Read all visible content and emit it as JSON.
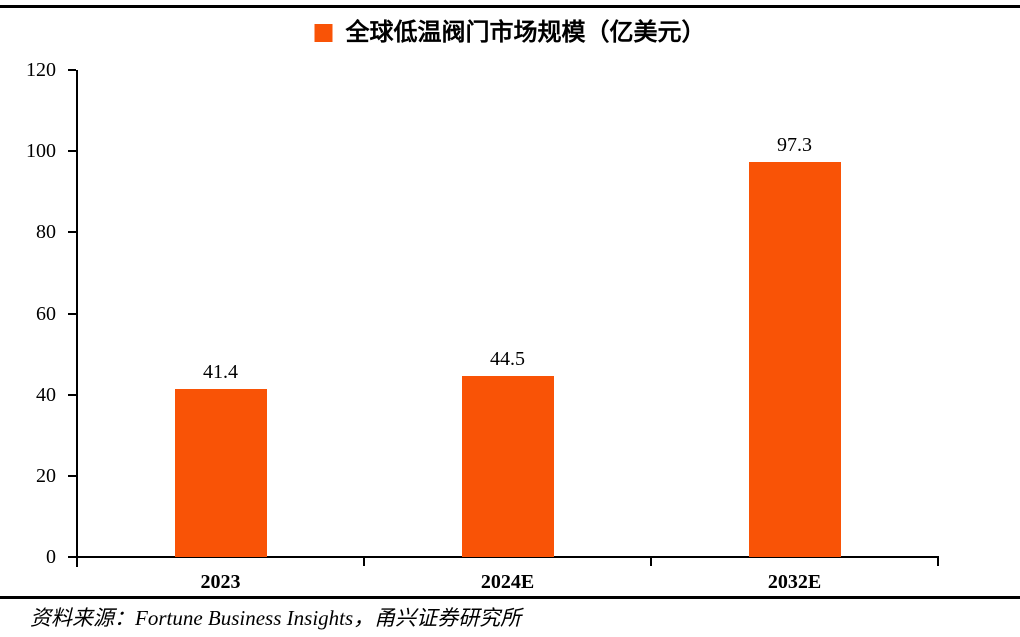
{
  "chart_data": {
    "type": "bar",
    "title": "全球低温阀门市场规模（亿美元）",
    "categories": [
      "2023",
      "2024E",
      "2032E"
    ],
    "values": [
      41.4,
      44.5,
      97.3
    ],
    "value_labels": [
      "41.4",
      "44.5",
      "97.3"
    ],
    "series": [
      {
        "name": "全球低温阀门市场规模（亿美元）",
        "values": [
          41.4,
          44.5,
          97.3
        ]
      }
    ],
    "xlabel": "",
    "ylabel": "",
    "ylim": [
      0,
      120
    ],
    "yticks": [
      0,
      20,
      40,
      60,
      80,
      100,
      120
    ],
    "grid": false,
    "legend_position": "top-center",
    "bar_color": "#F95306"
  },
  "legend": {
    "marker_color": "#F95306",
    "label": "全球低温阀门市场规模（亿美元）"
  },
  "footer": {
    "source_text": "资料来源：Fortune Business Insights，甬兴证券研究所"
  },
  "colors": {
    "bar": "#F95306",
    "axis": "#000000",
    "rule": "#000000",
    "text": "#000000"
  }
}
